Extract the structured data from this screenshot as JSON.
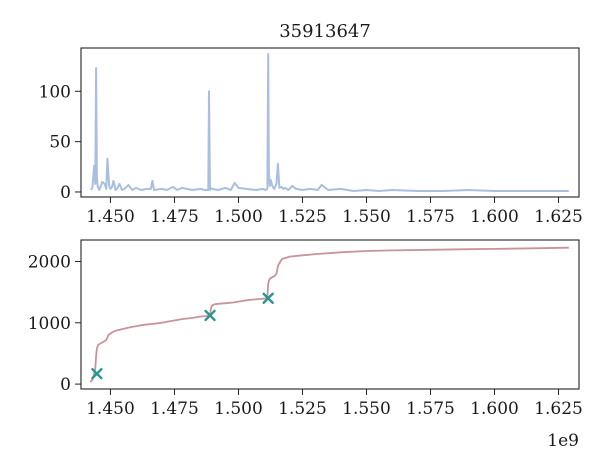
{
  "chart_data": [
    {
      "type": "line",
      "title": "35913647",
      "xlabel": "",
      "ylabel": "",
      "xlim": [
        1.4385,
        1.633
      ],
      "ylim": [
        -5,
        143
      ],
      "xticks": [
        1.45,
        1.475,
        1.5,
        1.525,
        1.55,
        1.575,
        1.6,
        1.625
      ],
      "xtick_labels": [
        "1.450",
        "1.475",
        "1.500",
        "1.525",
        "1.550",
        "1.575",
        "1.600",
        "1.625"
      ],
      "yticks": [
        0,
        50,
        100
      ],
      "ytick_labels": [
        "0",
        "50",
        "100"
      ],
      "grid": false,
      "color": "#a9bfe0",
      "series": [
        {
          "x": [
            1.4425,
            1.443,
            1.4436,
            1.4441,
            1.4444,
            1.4447,
            1.445,
            1.4456,
            1.446,
            1.4468,
            1.4477,
            1.4484,
            1.4488,
            1.4495,
            1.45,
            1.4506,
            1.4512,
            1.452,
            1.4528,
            1.4535,
            1.4545,
            1.4555,
            1.457,
            1.4585,
            1.46,
            1.462,
            1.464,
            1.4658,
            1.4664,
            1.467,
            1.47,
            1.472,
            1.4745,
            1.476,
            1.478,
            1.482,
            1.4852,
            1.487,
            1.4882,
            1.4885,
            1.4889,
            1.4892,
            1.4896,
            1.492,
            1.495,
            1.497,
            1.4985,
            1.5,
            1.503,
            1.507,
            1.5095,
            1.5105,
            1.5113,
            1.5116,
            1.5119,
            1.5122,
            1.5126,
            1.5132,
            1.514,
            1.5148,
            1.5154,
            1.516,
            1.5168,
            1.5175,
            1.5182,
            1.5195,
            1.521,
            1.5225,
            1.525,
            1.528,
            1.531,
            1.5325,
            1.535,
            1.54,
            1.545,
            1.55,
            1.555,
            1.56,
            1.57,
            1.58,
            1.59,
            1.6,
            1.61,
            1.62,
            1.629
          ],
          "y": [
            2,
            5,
            26,
            8,
            123,
            15,
            6,
            2,
            4,
            10,
            8,
            3,
            33,
            6,
            3,
            5,
            11,
            2,
            4,
            8,
            2,
            3,
            7,
            2,
            4,
            2,
            3,
            3,
            11,
            2,
            3,
            2,
            5,
            2,
            4,
            2,
            3,
            2,
            2,
            100,
            2,
            4,
            3,
            2,
            4,
            2,
            9,
            4,
            3,
            2,
            3,
            2,
            3,
            137,
            20,
            6,
            12,
            6,
            3,
            8,
            28,
            4,
            5,
            3,
            4,
            2,
            6,
            3,
            2,
            3,
            2,
            7,
            2,
            3,
            1,
            2,
            1,
            2,
            1,
            1,
            2,
            1,
            1,
            1,
            1
          ]
        }
      ]
    },
    {
      "type": "line",
      "title": "",
      "xlabel": "",
      "ylabel": "",
      "x_offset_label": "1e9",
      "xlim": [
        1.4385,
        1.633
      ],
      "ylim": [
        -80,
        2350
      ],
      "xticks": [
        1.45,
        1.475,
        1.5,
        1.525,
        1.55,
        1.575,
        1.6,
        1.625
      ],
      "xtick_labels": [
        "1.450",
        "1.475",
        "1.500",
        "1.525",
        "1.550",
        "1.575",
        "1.600",
        "1.625"
      ],
      "yticks": [
        0,
        1000,
        2000
      ],
      "ytick_labels": [
        "0",
        "1000",
        "2000"
      ],
      "grid": false,
      "color": "#c9939a",
      "marker_color": "#2a9490",
      "series": [
        {
          "x": [
            1.4422,
            1.443,
            1.4436,
            1.4441,
            1.4444,
            1.4447,
            1.4452,
            1.446,
            1.4468,
            1.4477,
            1.4484,
            1.4488,
            1.4492,
            1.4505,
            1.452,
            1.455,
            1.458,
            1.462,
            1.466,
            1.47,
            1.474,
            1.478,
            1.482,
            1.485,
            1.4875,
            1.4885,
            1.4889,
            1.4893,
            1.4896,
            1.4905,
            1.492,
            1.495,
            1.498,
            1.502,
            1.506,
            1.509,
            1.511,
            1.5113,
            1.5116,
            1.512,
            1.5124,
            1.513,
            1.514,
            1.5148,
            1.5155,
            1.517,
            1.52,
            1.525,
            1.53,
            1.54,
            1.55,
            1.56,
            1.575,
            1.59,
            1.6,
            1.615,
            1.629
          ],
          "y": [
            30,
            80,
            160,
            260,
            460,
            580,
            640,
            660,
            680,
            700,
            720,
            760,
            800,
            840,
            870,
            900,
            930,
            960,
            980,
            1000,
            1030,
            1060,
            1080,
            1100,
            1110,
            1120,
            1140,
            1240,
            1280,
            1300,
            1310,
            1320,
            1330,
            1360,
            1380,
            1390,
            1400,
            1420,
            1640,
            1700,
            1720,
            1740,
            1760,
            1800,
            1940,
            2040,
            2080,
            2100,
            2120,
            2150,
            2170,
            2180,
            2190,
            2200,
            2205,
            2215,
            2225
          ]
        }
      ],
      "markers": {
        "x": [
          1.4447,
          1.4889,
          1.5116
        ],
        "y": [
          170,
          1120,
          1400
        ],
        "symbol": "x"
      }
    }
  ]
}
